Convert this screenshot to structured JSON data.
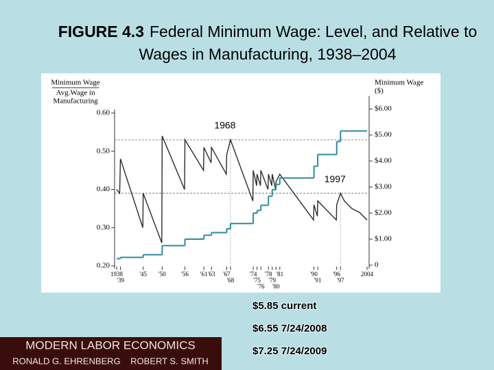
{
  "chart_data": {
    "type": "line",
    "figure_label": "FIGURE 4.3",
    "title": "Federal Minimum Wage: Level, and Relative to Wages in Manufacturing, 1938–2004",
    "ylabel": {
      "numerator": "Minimum Wage",
      "denominator": [
        "Avg.Wage in",
        "Manufacturing"
      ]
    },
    "y2label": [
      "Minimum Wage",
      "($)"
    ],
    "xlim": [
      1938,
      2004
    ],
    "xticks": [
      {
        "value": 1938,
        "label": "1938"
      },
      {
        "value": 1939,
        "label": "'39"
      },
      {
        "value": 1945,
        "label": "'45"
      },
      {
        "value": 1950,
        "label": "'50"
      },
      {
        "value": 1956,
        "label": "'56"
      },
      {
        "value": 1961,
        "label": "'61"
      },
      {
        "value": 1963,
        "label": "'63"
      },
      {
        "value": 1967,
        "label": "'67"
      },
      {
        "value": 1968,
        "label": "'68"
      },
      {
        "value": 1974,
        "label": "'74"
      },
      {
        "value": 1975,
        "label": "'75"
      },
      {
        "value": 1976,
        "label": "'76"
      },
      {
        "value": 1978,
        "label": "'78"
      },
      {
        "value": 1979,
        "label": "'79"
      },
      {
        "value": 1980,
        "label": "'80"
      },
      {
        "value": 1981,
        "label": "'81"
      },
      {
        "value": 1990,
        "label": "'90"
      },
      {
        "value": 1991,
        "label": "'91"
      },
      {
        "value": 1996,
        "label": "'96"
      },
      {
        "value": 1997,
        "label": "'97"
      },
      {
        "value": 2004,
        "label": "2004"
      }
    ],
    "ylim": [
      0.2,
      0.6
    ],
    "yticks": [
      {
        "value": 0.2,
        "label": "0.20"
      },
      {
        "value": 0.3,
        "label": "0.30"
      },
      {
        "value": 0.4,
        "label": "0.40"
      },
      {
        "value": 0.5,
        "label": "0.50"
      },
      {
        "value": 0.6,
        "label": "0.60"
      }
    ],
    "y2lim": [
      0,
      6
    ],
    "y2ticks": [
      0,
      {
        "value": 1,
        "label": "$1.00"
      },
      {
        "value": 2,
        "label": "$2.00"
      },
      {
        "value": 3,
        "label": "$3.00"
      },
      {
        "value": 4,
        "label": "$4.00"
      },
      {
        "value": 5,
        "label": "$5.00"
      },
      {
        "value": 6,
        "label": "$6.00"
      }
    ],
    "series": [
      {
        "color": "#2b2b2b",
        "x": [
          1938,
          1938.8,
          1939,
          1944.9,
          1945,
          1949.9,
          1950,
          1955.9,
          1956,
          1960.9,
          1961,
          1962.9,
          1963,
          1966.9,
          1967,
          1968,
          1973.9,
          1974,
          1974.9,
          1975,
          1975.9,
          1976,
          1977.9,
          1978,
          1978.9,
          1979,
          1979.9,
          1980,
          1981,
          1989.9,
          1990,
          1990.9,
          1991,
          1995.9,
          1996,
          1997,
          1998,
          2000,
          2002,
          2004
        ],
        "values": [
          0.4,
          0.39,
          0.48,
          0.3,
          0.39,
          0.26,
          0.54,
          0.4,
          0.53,
          0.45,
          0.51,
          0.47,
          0.51,
          0.44,
          0.49,
          0.53,
          0.37,
          0.45,
          0.41,
          0.44,
          0.41,
          0.45,
          0.4,
          0.44,
          0.41,
          0.44,
          0.4,
          0.42,
          0.44,
          0.32,
          0.36,
          0.33,
          0.37,
          0.32,
          0.36,
          0.39,
          0.37,
          0.35,
          0.34,
          0.32
        ]
      },
      {
        "color": "#2e8b9b",
        "axis": "y2",
        "step": true,
        "x": [
          1938,
          1939,
          1945,
          1950,
          1956,
          1961,
          1963,
          1967,
          1968,
          1974,
          1975,
          1976,
          1978,
          1979,
          1980,
          1981,
          1990,
          1991,
          1996,
          1997
        ],
        "values": [
          0.25,
          0.3,
          0.4,
          0.75,
          1.0,
          1.15,
          1.25,
          1.4,
          1.6,
          2.0,
          2.1,
          2.3,
          2.65,
          2.9,
          3.1,
          3.35,
          3.8,
          4.25,
          4.75,
          5.15
        ]
      }
    ],
    "reference_lines": [
      {
        "x": 1968,
        "y": 0.53
      },
      {
        "x": 1997,
        "y": 0.39
      }
    ],
    "annotations": [
      "1968",
      "1997"
    ],
    "notes": [
      "$5.85 current",
      "$6.55 7/24/2008",
      "$7.25 7/24/2009"
    ],
    "logo": [
      "MODERN LABOR ECONOMICS",
      "RONALD G. EHRENBERG    ROBERT S. SMITH"
    ]
  }
}
